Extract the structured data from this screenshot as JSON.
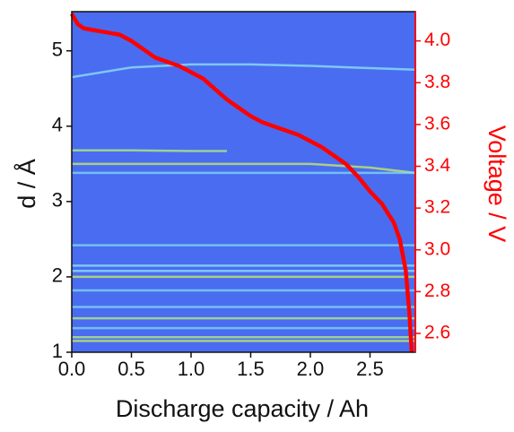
{
  "chart_data": {
    "type": "line",
    "xlabel": "Discharge capacity / Ah",
    "ylabel": "d / Å",
    "y2label": "Voltage / V",
    "background": "#4a6cf0",
    "y2color": "#ff0000",
    "xlim": [
      0,
      2.88
    ],
    "ylim": [
      1,
      5.52
    ],
    "y2lim": [
      2.51,
      4.14
    ],
    "xticks": [
      {
        "value": 0,
        "label": "0.0"
      },
      0.5,
      {
        "value": 1,
        "label": "1.0"
      },
      1.5,
      {
        "value": 2,
        "label": "2.0"
      },
      2.5
    ],
    "yticks": [
      1,
      2,
      3,
      4,
      5
    ],
    "y2ticks": [
      2.6,
      2.8,
      {
        "value": 3,
        "label": "3.0"
      },
      3.2,
      3.4,
      3.6,
      3.8,
      {
        "value": 4,
        "label": "4.0"
      }
    ],
    "series": [
      {
        "color": "#8fe6f5",
        "x": [
          0,
          0.5,
          1,
          1.5,
          2,
          2.5,
          2.88
        ],
        "values": [
          4.65,
          4.78,
          4.82,
          4.82,
          4.8,
          4.77,
          4.75
        ]
      },
      {
        "color": "#b6f27a",
        "x": [
          0,
          0.5,
          1,
          1.3
        ],
        "values": [
          3.68,
          3.68,
          3.67,
          3.67
        ]
      },
      {
        "color": "#c8f060",
        "x": [
          0,
          0.5,
          1,
          1.5,
          2,
          2.5,
          2.88
        ],
        "values": [
          3.5,
          3.5,
          3.5,
          3.5,
          3.5,
          3.45,
          3.38
        ]
      },
      {
        "color": "#7fdcf0",
        "x": [
          0,
          2.88
        ],
        "values": [
          3.38,
          3.38
        ]
      },
      {
        "color": "#7fdcf0",
        "x": [
          0,
          2.88
        ],
        "values": [
          2.42,
          2.42
        ]
      },
      {
        "color": "#8fe6f5",
        "x": [
          0,
          2.88
        ],
        "values": [
          2.15,
          2.15
        ]
      },
      {
        "color": "#8fe6f5",
        "x": [
          0,
          2.88
        ],
        "values": [
          2.08,
          2.08
        ]
      },
      {
        "color": "#c8f060",
        "x": [
          0,
          2.88
        ],
        "values": [
          2.0,
          2.0
        ]
      },
      {
        "color": "#7fdcf0",
        "x": [
          0,
          2.88
        ],
        "values": [
          1.82,
          1.82
        ]
      },
      {
        "color": "#7fdcf0",
        "x": [
          0,
          2.88
        ],
        "values": [
          1.6,
          1.6
        ]
      },
      {
        "color": "#b6f27a",
        "x": [
          0,
          2.88
        ],
        "values": [
          1.45,
          1.45
        ]
      },
      {
        "color": "#7fdcf0",
        "x": [
          0,
          2.88
        ],
        "values": [
          1.32,
          1.32
        ]
      },
      {
        "color": "#b6f27a",
        "x": [
          0,
          2.88
        ],
        "values": [
          1.2,
          1.2
        ]
      },
      {
        "color": "#c8f060",
        "x": [
          0,
          2.88
        ],
        "values": [
          1.15,
          1.15
        ]
      },
      {
        "color": "#ff0000",
        "axis": "y2",
        "x": [
          0,
          0.05,
          0.1,
          0.2,
          0.3,
          0.4,
          0.5,
          0.6,
          0.7,
          0.8,
          0.9,
          1.0,
          1.1,
          1.2,
          1.3,
          1.4,
          1.5,
          1.6,
          1.7,
          1.8,
          1.9,
          2.0,
          2.1,
          2.2,
          2.3,
          2.4,
          2.5,
          2.6,
          2.7,
          2.75,
          2.8,
          2.83,
          2.85
        ],
        "values": [
          4.13,
          4.08,
          4.06,
          4.05,
          4.04,
          4.03,
          4.0,
          3.96,
          3.92,
          3.9,
          3.88,
          3.85,
          3.82,
          3.77,
          3.72,
          3.68,
          3.64,
          3.61,
          3.59,
          3.57,
          3.55,
          3.52,
          3.49,
          3.45,
          3.41,
          3.35,
          3.28,
          3.22,
          3.13,
          3.05,
          2.9,
          2.7,
          2.51
        ]
      }
    ]
  }
}
